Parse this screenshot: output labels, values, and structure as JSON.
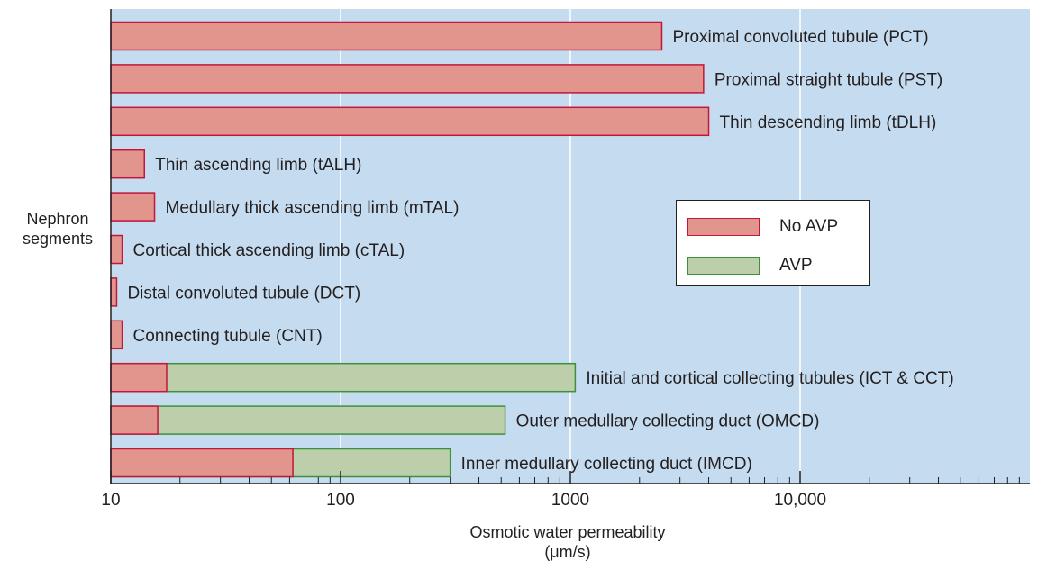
{
  "chart_data": {
    "type": "bar",
    "orientation": "horizontal",
    "x_scale": "log",
    "xlim": [
      10,
      90000
    ],
    "x_ticks": [
      10,
      100,
      1000,
      10000
    ],
    "x_tick_labels": [
      "10",
      "100",
      "1000",
      "10,000"
    ],
    "xlabel": "Osmotic water permeability",
    "xlabel_unit": "(μm/s)",
    "ylabel": [
      "Nephron",
      "segments"
    ],
    "grid": "vertical major gridlines",
    "legend_position": "center-right",
    "colors": {
      "plot_bg": "#c5dcf0",
      "no_avp_fill": "#e1958c",
      "no_avp_edge": "#c2163b",
      "avp_fill": "#bccfaa",
      "avp_edge": "#3f8f3a",
      "grid": "#ffffff"
    },
    "categories": [
      "Proximal convoluted tubule (PCT)",
      "Proximal straight tubule (PST)",
      "Thin descending limb (tDLH)",
      "Thin ascending limb (tALH)",
      "Medullary thick ascending limb (mTAL)",
      "Cortical thick ascending limb (cTAL)",
      "Distal convoluted tubule (DCT)",
      "Connecting tubule (CNT)",
      "Initial and cortical collecting tubules (ICT & CCT)",
      "Outer medullary collecting duct (OMCD)",
      "Inner medullary collecting duct (IMCD)"
    ],
    "series": [
      {
        "name": "No AVP",
        "values": [
          2500,
          3800,
          4000,
          14,
          15.5,
          11.2,
          10.6,
          11.2,
          17.5,
          16,
          62
        ]
      },
      {
        "name": "AVP",
        "values": [
          null,
          null,
          null,
          null,
          null,
          null,
          null,
          null,
          1050,
          520,
          300
        ]
      }
    ]
  },
  "legend": {
    "items": [
      "No AVP",
      "AVP"
    ]
  }
}
